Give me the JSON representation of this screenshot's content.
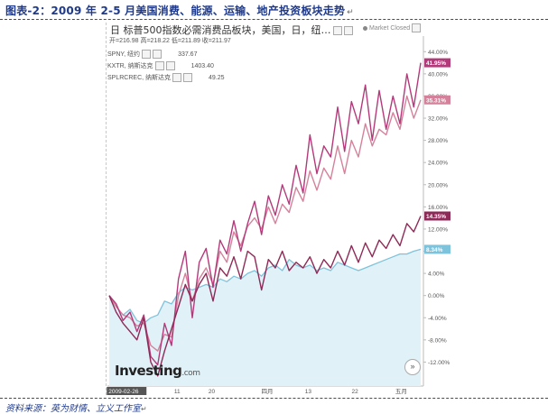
{
  "figure": {
    "title": "图表-2：2009 年 2-5 月美国消费、能源、运输、地产投资板块走势",
    "source": "资料来源：英为财情、立义工作室"
  },
  "widget": {
    "title": "标普500指数必需消费品板块，美国，日，纽…",
    "status": "Market Closed",
    "ohlc": "开=216.98  高=218.22  低=211.89  收=211.97",
    "legend": [
      {
        "label": "SPNY, 纽约",
        "value": "337.67"
      },
      {
        "label": "KXTR, 纳斯达克",
        "value": "1403.40"
      },
      {
        "label": "SPLRCREC, 纳斯达克",
        "value": "49.25"
      }
    ],
    "watermark_main": "Investing",
    "watermark_suffix": ".com",
    "expand_glyph": "»"
  },
  "chart_data": {
    "type": "line",
    "title": "标普500指数必需消费品板块，美国，日，纽…",
    "y_unit": "%",
    "ylim": [
      -16,
      46
    ],
    "y_ticks": [
      "44.00%",
      "40.00%",
      "36.00%",
      "32.00%",
      "28.00%",
      "24.00%",
      "20.00%",
      "16.00%",
      "12.00%",
      "8.00%",
      "4.00%",
      "0.00%",
      "-4.00%",
      "-8.00%",
      "-12.00%"
    ],
    "x_ticks": [
      "2009-02-26",
      "11",
      "20",
      "四月",
      "13",
      "22",
      "五月"
    ],
    "grid": false,
    "series": [
      {
        "color": "#b33a7a",
        "end_label": "41.95%",
        "values": [
          0,
          -1.5,
          -4.5,
          -3,
          -6.5,
          -3.5,
          -11,
          -12.5,
          -5,
          -9,
          3,
          8,
          -4,
          6,
          8.5,
          1.5,
          10,
          7.5,
          13.5,
          8,
          13,
          17,
          11,
          18,
          14.5,
          20,
          16.5,
          23.5,
          18.5,
          29,
          22,
          27,
          25,
          34,
          26,
          35,
          31,
          38,
          28,
          37,
          30,
          36,
          31,
          40,
          34,
          42
        ]
      },
      {
        "color": "#d4829b",
        "end_label": "35.31%",
        "values": [
          0,
          -2,
          -3.5,
          -4,
          -5.5,
          -5,
          -9,
          -10,
          -7,
          -7.5,
          0,
          4,
          -1,
          3,
          5,
          2,
          8,
          6,
          11.5,
          9,
          12.5,
          14,
          12,
          16,
          13,
          16.5,
          15,
          19.5,
          17,
          22.5,
          19,
          23,
          21,
          27,
          22,
          28,
          25,
          31,
          27,
          30,
          29,
          33,
          30,
          36,
          32,
          35.3
        ]
      },
      {
        "color": "#8e2a57",
        "end_label": "14.35%",
        "values": [
          0,
          -3,
          -5,
          -6.5,
          -8,
          -4,
          -12,
          -14.5,
          -10,
          -6,
          -2,
          2,
          -1,
          2,
          4,
          -1,
          5,
          3.5,
          7,
          3,
          8,
          7,
          1,
          6.5,
          5,
          8,
          4.5,
          6,
          5,
          7,
          4,
          6.5,
          5,
          8,
          5.5,
          9,
          6,
          9.5,
          7,
          10,
          8.5,
          11,
          9,
          13,
          11.5,
          14.35
        ]
      },
      {
        "color": "#7ec3dc",
        "fill": "#e1f1f8",
        "end_label": "8.34%",
        "values": [
          0,
          -2,
          -3.5,
          -2.5,
          -4.5,
          -5,
          -4,
          -3.5,
          -1,
          -1.5,
          0.5,
          1.5,
          1,
          1.5,
          2,
          1.5,
          3,
          2.5,
          3.5,
          3,
          4,
          4.5,
          3.5,
          5,
          5.5,
          4.5,
          6.5,
          5.5,
          5,
          5.5,
          4.5,
          5,
          4.5,
          6,
          5.5,
          5,
          4.5,
          5,
          5.5,
          6,
          6.5,
          7,
          7.5,
          7.5,
          8,
          8.34
        ]
      }
    ]
  }
}
